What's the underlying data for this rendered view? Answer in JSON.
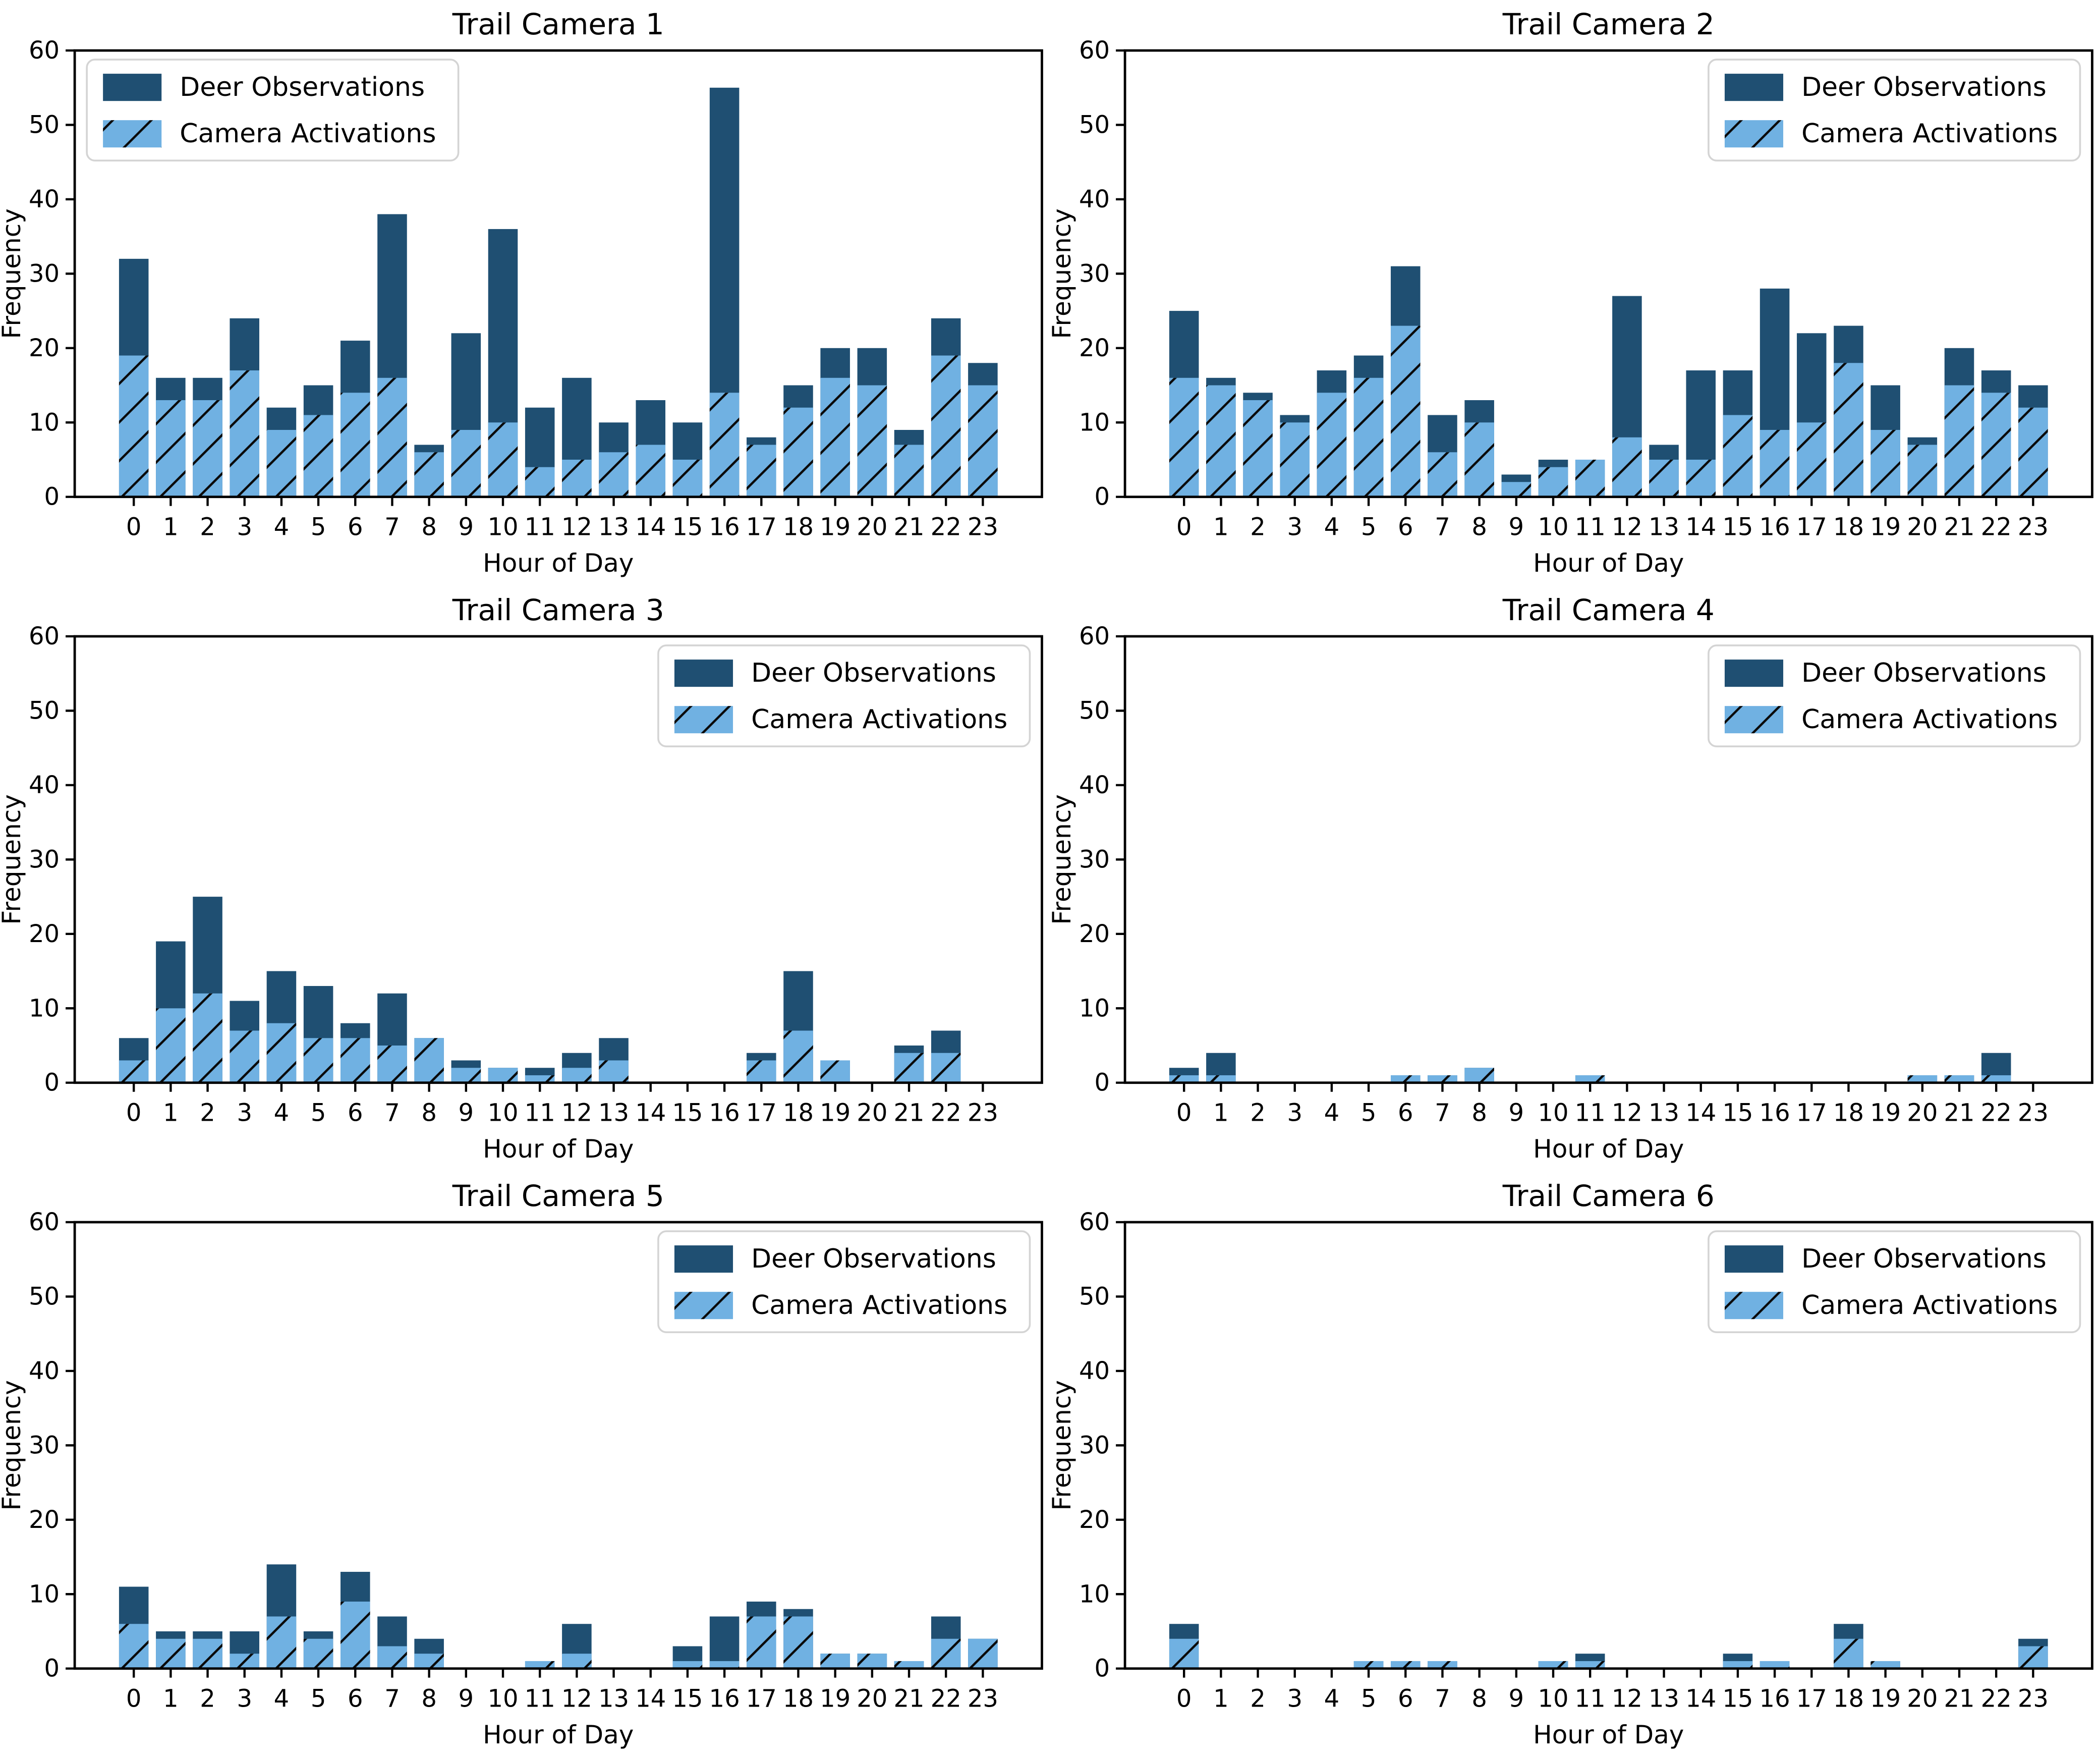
{
  "figure": {
    "xlabel": "Hour of Day",
    "ylabel": "Frequency",
    "legend_labels": [
      "Deer Observations",
      "Camera Activations"
    ],
    "colors": {
      "deer": "#1f4f72",
      "camera": "#70b1e2",
      "hatch": "#0a0a0a",
      "spine": "#000000",
      "legend_border": "#d4d4d4",
      "legend_bg": "#ffffff"
    },
    "ylim": [
      0,
      60
    ],
    "yticks": [
      0,
      10,
      20,
      30,
      40,
      50,
      60
    ]
  },
  "chart_data": [
    {
      "type": "bar",
      "title": "Trail Camera 1",
      "xlabel": "Hour of Day",
      "ylabel": "Frequency",
      "ylim": [
        0,
        60
      ],
      "legend_position": "upper-left",
      "categories": [
        0,
        1,
        2,
        3,
        4,
        5,
        6,
        7,
        8,
        9,
        10,
        11,
        12,
        13,
        14,
        15,
        16,
        17,
        18,
        19,
        20,
        21,
        22,
        23
      ],
      "series": [
        {
          "name": "Deer Observations",
          "values": [
            32,
            16,
            16,
            24,
            12,
            15,
            21,
            38,
            7,
            22,
            36,
            12,
            16,
            10,
            13,
            10,
            55,
            8,
            15,
            20,
            20,
            9,
            24,
            18
          ]
        },
        {
          "name": "Camera Activations",
          "values": [
            19,
            13,
            13,
            17,
            9,
            11,
            14,
            16,
            6,
            9,
            10,
            4,
            5,
            6,
            7,
            5,
            14,
            7,
            12,
            16,
            15,
            7,
            19,
            15
          ]
        }
      ]
    },
    {
      "type": "bar",
      "title": "Trail Camera 2",
      "xlabel": "Hour of Day",
      "ylabel": "Frequency",
      "ylim": [
        0,
        60
      ],
      "legend_position": "upper-right",
      "categories": [
        0,
        1,
        2,
        3,
        4,
        5,
        6,
        7,
        8,
        9,
        10,
        11,
        12,
        13,
        14,
        15,
        16,
        17,
        18,
        19,
        20,
        21,
        22,
        23
      ],
      "series": [
        {
          "name": "Deer Observations",
          "values": [
            25,
            16,
            14,
            11,
            17,
            19,
            31,
            11,
            13,
            3,
            5,
            5,
            27,
            7,
            17,
            17,
            28,
            22,
            23,
            15,
            8,
            20,
            17,
            15
          ]
        },
        {
          "name": "Camera Activations",
          "values": [
            16,
            15,
            13,
            10,
            14,
            16,
            23,
            6,
            10,
            2,
            4,
            5,
            8,
            5,
            5,
            11,
            9,
            10,
            18,
            9,
            7,
            15,
            14,
            12
          ]
        }
      ]
    },
    {
      "type": "bar",
      "title": "Trail Camera 3",
      "xlabel": "Hour of Day",
      "ylabel": "Frequency",
      "ylim": [
        0,
        60
      ],
      "legend_position": "upper-right",
      "categories": [
        0,
        1,
        2,
        3,
        4,
        5,
        6,
        7,
        8,
        9,
        10,
        11,
        12,
        13,
        14,
        15,
        16,
        17,
        18,
        19,
        20,
        21,
        22,
        23
      ],
      "series": [
        {
          "name": "Deer Observations",
          "values": [
            6,
            19,
            25,
            11,
            15,
            13,
            8,
            12,
            6,
            3,
            2,
            2,
            4,
            6,
            0,
            0,
            0,
            4,
            15,
            3,
            0,
            5,
            7,
            0
          ]
        },
        {
          "name": "Camera Activations",
          "values": [
            3,
            10,
            12,
            7,
            8,
            6,
            6,
            5,
            6,
            2,
            2,
            1,
            2,
            3,
            0,
            0,
            0,
            3,
            7,
            3,
            0,
            4,
            4,
            0
          ]
        }
      ]
    },
    {
      "type": "bar",
      "title": "Trail Camera 4",
      "xlabel": "Hour of Day",
      "ylabel": "Frequency",
      "ylim": [
        0,
        60
      ],
      "legend_position": "upper-right",
      "categories": [
        0,
        1,
        2,
        3,
        4,
        5,
        6,
        7,
        8,
        9,
        10,
        11,
        12,
        13,
        14,
        15,
        16,
        17,
        18,
        19,
        20,
        21,
        22,
        23
      ],
      "series": [
        {
          "name": "Deer Observations",
          "values": [
            2,
            4,
            0,
            0,
            0,
            0,
            1,
            1,
            2,
            0,
            0,
            1,
            0,
            0,
            0,
            0,
            0,
            0,
            0,
            0,
            1,
            1,
            4,
            0
          ]
        },
        {
          "name": "Camera Activations",
          "values": [
            1,
            1,
            0,
            0,
            0,
            0,
            1,
            1,
            2,
            0,
            0,
            1,
            0,
            0,
            0,
            0,
            0,
            0,
            0,
            0,
            1,
            1,
            1,
            0
          ]
        }
      ]
    },
    {
      "type": "bar",
      "title": "Trail Camera 5",
      "xlabel": "Hour of Day",
      "ylabel": "Frequency",
      "ylim": [
        0,
        60
      ],
      "legend_position": "upper-right",
      "categories": [
        0,
        1,
        2,
        3,
        4,
        5,
        6,
        7,
        8,
        9,
        10,
        11,
        12,
        13,
        14,
        15,
        16,
        17,
        18,
        19,
        20,
        21,
        22,
        23
      ],
      "series": [
        {
          "name": "Deer Observations",
          "values": [
            11,
            5,
            5,
            5,
            14,
            5,
            13,
            7,
            4,
            0,
            0,
            1,
            6,
            0,
            0,
            3,
            7,
            9,
            8,
            2,
            2,
            1,
            7,
            4
          ]
        },
        {
          "name": "Camera Activations",
          "values": [
            6,
            4,
            4,
            2,
            7,
            4,
            9,
            3,
            2,
            0,
            0,
            1,
            2,
            0,
            0,
            1,
            1,
            7,
            7,
            2,
            2,
            1,
            4,
            4
          ]
        }
      ]
    },
    {
      "type": "bar",
      "title": "Trail Camera 6",
      "xlabel": "Hour of Day",
      "ylabel": "Frequency",
      "ylim": [
        0,
        60
      ],
      "legend_position": "upper-right",
      "categories": [
        0,
        1,
        2,
        3,
        4,
        5,
        6,
        7,
        8,
        9,
        10,
        11,
        12,
        13,
        14,
        15,
        16,
        17,
        18,
        19,
        20,
        21,
        22,
        23
      ],
      "series": [
        {
          "name": "Deer Observations",
          "values": [
            6,
            0,
            0,
            0,
            0,
            1,
            1,
            1,
            0,
            0,
            1,
            2,
            0,
            0,
            0,
            2,
            1,
            0,
            6,
            1,
            0,
            0,
            0,
            4
          ]
        },
        {
          "name": "Camera Activations",
          "values": [
            4,
            0,
            0,
            0,
            0,
            1,
            1,
            1,
            0,
            0,
            1,
            1,
            0,
            0,
            0,
            1,
            1,
            0,
            4,
            1,
            0,
            0,
            0,
            3
          ]
        }
      ]
    }
  ]
}
